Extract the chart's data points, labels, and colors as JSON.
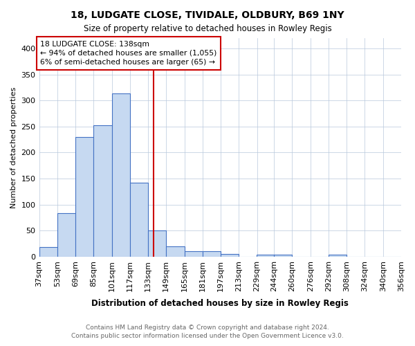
{
  "title": "18, LUDGATE CLOSE, TIVIDALE, OLDBURY, B69 1NY",
  "subtitle": "Size of property relative to detached houses in Rowley Regis",
  "xlabel": "Distribution of detached houses by size in Rowley Regis",
  "ylabel": "Number of detached properties",
  "bin_edges": [
    37,
    53,
    69,
    85,
    101,
    117,
    133,
    149,
    165,
    181,
    197,
    213,
    229,
    244,
    260,
    276,
    292,
    308,
    324,
    340,
    356
  ],
  "bar_heights": [
    18,
    83,
    230,
    252,
    314,
    142,
    51,
    20,
    10,
    10,
    5,
    0,
    4,
    4,
    0,
    0,
    4,
    0,
    0,
    0
  ],
  "bar_color": "#c6d9f1",
  "bar_edge_color": "#4472c4",
  "property_size": 138,
  "red_line_color": "#cc0000",
  "annotation_text": "18 LUDGATE CLOSE: 138sqm\n← 94% of detached houses are smaller (1,055)\n6% of semi-detached houses are larger (65) →",
  "annotation_box_color": "#ffffff",
  "annotation_box_edge": "#cc0000",
  "ylim": [
    0,
    420
  ],
  "yticks": [
    0,
    50,
    100,
    150,
    200,
    250,
    300,
    350,
    400
  ],
  "footer1": "Contains HM Land Registry data © Crown copyright and database right 2024.",
  "footer2": "Contains public sector information licensed under the Open Government Licence v3.0.",
  "background_color": "#ffffff",
  "grid_color": "#b8c8dc"
}
